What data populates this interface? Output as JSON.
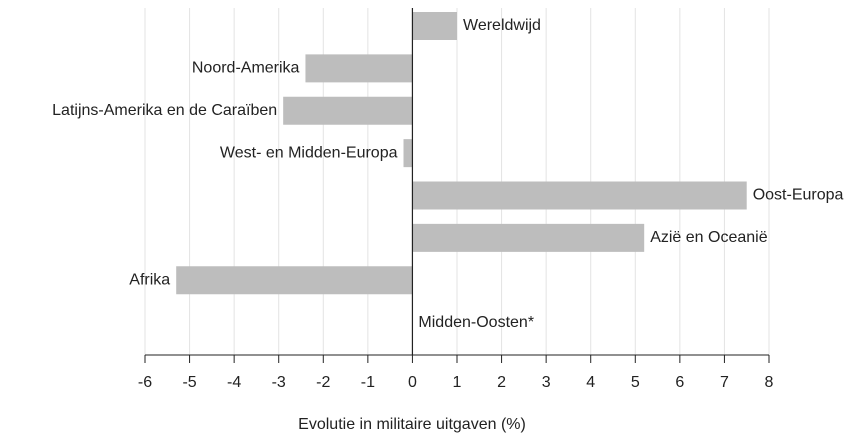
{
  "chart_data": {
    "type": "hbar",
    "categories": [
      "Wereldwijd",
      "Noord-Amerika",
      "Latijns-Amerika en de Caraïben",
      "West- en Midden-Europa",
      "Oost-Europa",
      "Azië en Oceanië",
      "Afrika",
      "Midden-Oosten*"
    ],
    "values": [
      1,
      -2.4,
      -2.9,
      -0.2,
      7.5,
      5.2,
      -5.3,
      null
    ],
    "color": "#bdbdbd",
    "xlabel": "Evolutie in militaire uitgaven (%)",
    "xlim": [
      -6,
      8
    ],
    "xticks": [
      -6,
      -5,
      -4,
      -3,
      -2,
      -1,
      0,
      1,
      2,
      3,
      4,
      5,
      6,
      7,
      8
    ],
    "grid": true
  }
}
